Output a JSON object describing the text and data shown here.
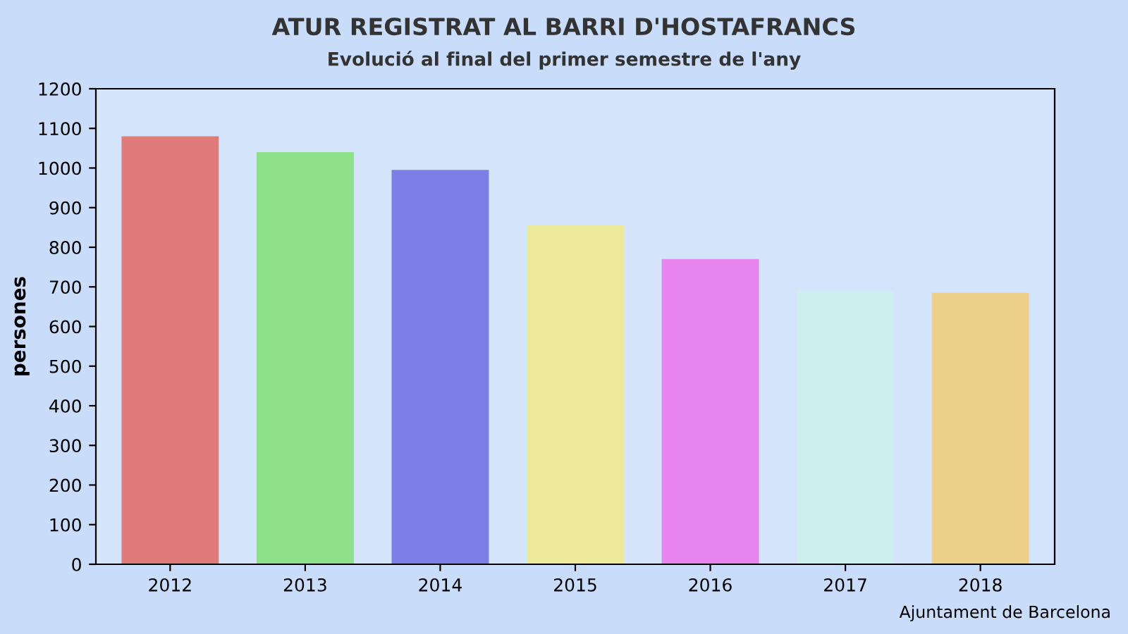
{
  "chart_data": {
    "type": "bar",
    "title": "ATUR REGISTRAT AL BARRI D'HOSTAFRANCS",
    "subtitle": "Evolució al final del primer semestre de l'any",
    "ylabel": "persones",
    "categories": [
      "2012",
      "2013",
      "2014",
      "2015",
      "2016",
      "2017",
      "2018"
    ],
    "values": [
      1080,
      1040,
      995,
      855,
      770,
      690,
      685
    ],
    "colors": [
      "#e07b7a",
      "#8fe08a",
      "#7c7ee6",
      "#ecea9a",
      "#e884ee",
      "#cdeeee",
      "#ecd08a"
    ],
    "ylim": [
      0,
      1200
    ],
    "yticks": [
      0,
      100,
      200,
      300,
      400,
      500,
      600,
      700,
      800,
      900,
      1000,
      1100,
      1200
    ],
    "grid": false,
    "annotations": [
      "Ajuntament de Barcelona"
    ]
  }
}
